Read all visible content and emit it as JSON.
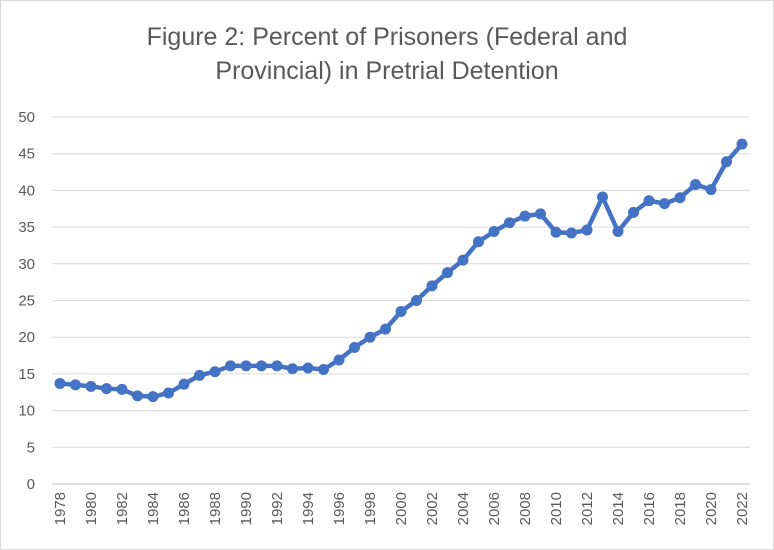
{
  "chart_data": {
    "type": "line",
    "title_line1": "Figure 2: Percent of Prisoners (Federal and",
    "title_line2": "Provincial) in Pretrial Detention",
    "xlabel": "",
    "ylabel": "",
    "ylim": [
      0,
      50
    ],
    "yticks": [
      0,
      5,
      10,
      15,
      20,
      25,
      30,
      35,
      40,
      45,
      50
    ],
    "xlim": [
      1978,
      2022
    ],
    "xticks": [
      1978,
      1980,
      1982,
      1984,
      1986,
      1988,
      1990,
      1992,
      1994,
      1996,
      1998,
      2000,
      2002,
      2004,
      2006,
      2008,
      2010,
      2012,
      2014,
      2016,
      2018,
      2020,
      2022
    ],
    "grid": true,
    "legend": false,
    "color": "#4472C4",
    "x": [
      1978,
      1979,
      1980,
      1981,
      1982,
      1983,
      1984,
      1985,
      1986,
      1987,
      1988,
      1989,
      1990,
      1991,
      1992,
      1993,
      1994,
      1995,
      1996,
      1997,
      1998,
      1999,
      2000,
      2001,
      2002,
      2003,
      2004,
      2005,
      2006,
      2007,
      2008,
      2009,
      2010,
      2011,
      2012,
      2013,
      2014,
      2015,
      2016,
      2017,
      2018,
      2019,
      2020,
      2021,
      2022
    ],
    "values": [
      13.7,
      13.5,
      13.3,
      13.0,
      12.9,
      12.0,
      11.9,
      12.4,
      13.6,
      14.8,
      15.3,
      16.1,
      16.1,
      16.1,
      16.1,
      15.7,
      15.8,
      15.6,
      16.9,
      18.6,
      20.0,
      21.1,
      23.5,
      25.0,
      27.0,
      28.8,
      30.5,
      33.0,
      34.4,
      35.6,
      36.5,
      36.8,
      34.3,
      34.2,
      34.6,
      39.1,
      34.4,
      37.0,
      38.6,
      38.2,
      39.0,
      40.8,
      40.1,
      43.9,
      46.3
    ]
  }
}
